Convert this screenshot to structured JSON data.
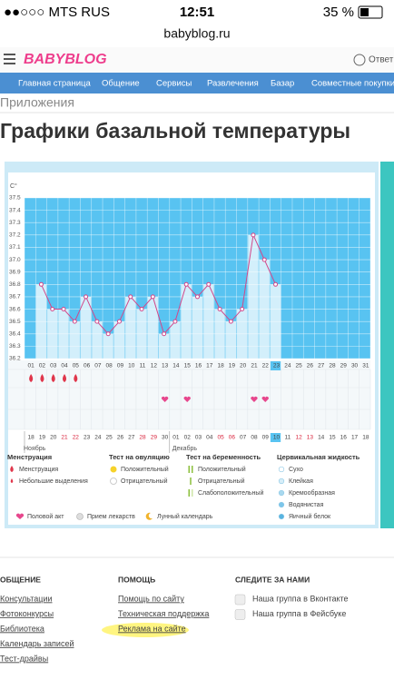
{
  "status_bar": {
    "carrier": "●●○○○ MTS RUS",
    "time": "12:51",
    "battery": "35 %"
  },
  "url": "babyblog.ru",
  "header": {
    "logo": "BABYBLOG",
    "reply": "Ответ"
  },
  "nav": [
    "Главная страница",
    "Общение",
    "Сервисы",
    "Развлечения",
    "Базар",
    "Совместные покупки"
  ],
  "breadcrumb": "Приложения",
  "title": "Графики базальной температуры",
  "chart_data": {
    "type": "line",
    "y_label": "C°",
    "categories": [
      "01",
      "02",
      "03",
      "04",
      "05",
      "06",
      "07",
      "08",
      "09",
      "10",
      "11",
      "12",
      "13",
      "14",
      "15",
      "16",
      "17",
      "18",
      "19",
      "20",
      "21",
      "22",
      "23",
      "24",
      "25",
      "26",
      "27",
      "28",
      "29",
      "30",
      "31"
    ],
    "values": [
      null,
      36.8,
      36.6,
      36.6,
      36.5,
      36.7,
      36.5,
      36.4,
      36.5,
      36.7,
      36.6,
      36.7,
      36.4,
      36.5,
      36.8,
      36.7,
      36.8,
      36.6,
      36.5,
      36.6,
      37.2,
      37.0,
      36.8,
      null,
      null,
      null,
      null,
      null,
      null,
      null,
      null
    ],
    "color": "#d2478a",
    "bar_color": "#d3effb",
    "background": "#58c3f1",
    "ylim": [
      36.2,
      37.5
    ],
    "yticks": [
      36.2,
      36.3,
      36.4,
      36.5,
      36.6,
      36.7,
      36.8,
      36.9,
      {
        "value": 37,
        "label": "37.0"
      },
      37.1,
      37.2,
      37.3,
      37.4,
      37.5
    ],
    "grid": true,
    "today": "23",
    "cycle_dates": [
      {
        "label": "18",
        "month": "Ноябрь"
      },
      {
        "label": "19"
      },
      {
        "label": "20"
      },
      {
        "label": "21",
        "weekend": true
      },
      {
        "label": "22",
        "weekend": true
      },
      {
        "label": "23"
      },
      {
        "label": "24"
      },
      {
        "label": "25"
      },
      {
        "label": "26"
      },
      {
        "label": "27"
      },
      {
        "label": "28",
        "weekend": true
      },
      {
        "label": "29",
        "weekend": true
      },
      {
        "label": "30"
      },
      {
        "label": "01",
        "month": "Декабрь"
      },
      {
        "label": "02"
      },
      {
        "label": "03"
      },
      {
        "label": "04"
      },
      {
        "label": "05",
        "weekend": true
      },
      {
        "label": "06",
        "weekend": true
      },
      {
        "label": "07"
      },
      {
        "label": "08"
      },
      {
        "label": "09"
      },
      {
        "label": "10",
        "today": true
      },
      {
        "label": "11"
      },
      {
        "label": "12",
        "weekend": true
      },
      {
        "label": "13",
        "weekend": true
      },
      {
        "label": "14"
      },
      {
        "label": "15"
      },
      {
        "label": "16"
      },
      {
        "label": "17"
      },
      {
        "label": "18"
      }
    ],
    "markers": {
      "menstruation": [
        "01",
        "02",
        "03",
        "04",
        "05"
      ],
      "intercourse": [
        "13",
        "15",
        "21",
        "22"
      ]
    },
    "legend": [
      {
        "title": "Менструация",
        "items": [
          "Менструация",
          "Небольшие выделения"
        ]
      },
      {
        "title": "Тест на овуляцию",
        "items": [
          "Положительный",
          "Отрицательный"
        ]
      },
      {
        "title": "Тест на беременность",
        "items": [
          "Положительный",
          "Отрицательный",
          "Слабоположительный"
        ]
      },
      {
        "title": "Цервикальная жидкость",
        "items": [
          "Сухо",
          "Клейкая",
          "Кремообразная",
          "Водянистая",
          "Яичный белок"
        ]
      }
    ],
    "legend_bottom": [
      "Половой акт",
      "Прием лекарств",
      "Лунный календарь"
    ]
  },
  "footer": [
    {
      "title": "ОБЩЕНИЕ",
      "links": [
        "Консультации",
        "Фотоконкурсы",
        "Библиотека",
        "Календарь записей",
        "Тест-драйвы"
      ]
    },
    {
      "title": "ПОМОЩЬ",
      "links": [
        "Помощь по сайту",
        "Техническая поддержка",
        "Реклама на сайте"
      ]
    },
    {
      "title": "СЛЕДИТЕ ЗА НАМИ",
      "links": [
        "Наша группа в Вконтакте",
        "Наша группа в Фейсбуке"
      ]
    }
  ]
}
